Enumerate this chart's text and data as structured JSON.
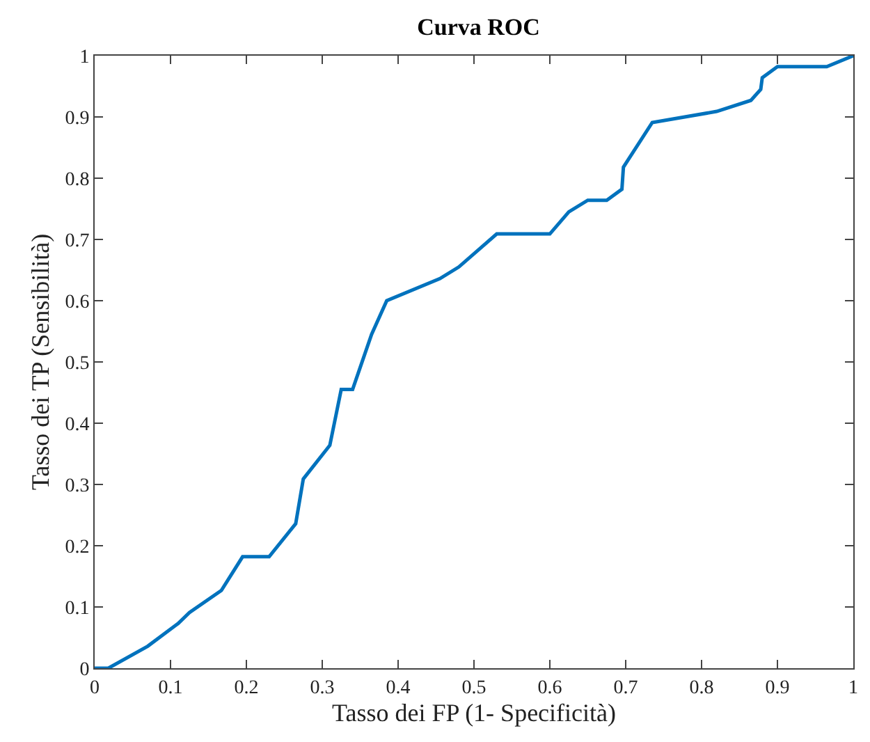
{
  "chart_data": {
    "type": "line",
    "title": "Curva ROC",
    "xlabel": "Tasso dei FP (1- Specificità)",
    "ylabel": "Tasso dei TP (Sensibilità)",
    "x": [
      0,
      0.018,
      0.07,
      0.11,
      0.125,
      0.167,
      0.195,
      0.23,
      0.265,
      0.275,
      0.31,
      0.325,
      0.34,
      0.35,
      0.365,
      0.385,
      0.455,
      0.48,
      0.53,
      0.6,
      0.625,
      0.65,
      0.675,
      0.695,
      0.697,
      0.735,
      0.82,
      0.865,
      0.878,
      0.88,
      0.9,
      0.965,
      1
    ],
    "series": [
      {
        "color": "#0072bd",
        "values": [
          0,
          0,
          0.036,
          0.073,
          0.091,
          0.127,
          0.182,
          0.182,
          0.236,
          0.309,
          0.364,
          0.455,
          0.455,
          0.491,
          0.545,
          0.6,
          0.636,
          0.655,
          0.709,
          0.709,
          0.745,
          0.764,
          0.764,
          0.782,
          0.818,
          0.891,
          0.909,
          0.927,
          0.945,
          0.964,
          0.982,
          0.982,
          1
        ]
      }
    ],
    "xlim": [
      0,
      1
    ],
    "ylim": [
      0,
      1
    ],
    "xticks": [
      0,
      0.1,
      0.2,
      0.3,
      0.4,
      0.5,
      0.6,
      0.7,
      0.8,
      0.9,
      1
    ],
    "yticks": [
      0,
      0.1,
      0.2,
      0.3,
      0.4,
      0.5,
      0.6,
      0.7,
      0.8,
      0.9,
      1
    ],
    "grid": false,
    "marker": "none",
    "line_style": "solid"
  }
}
